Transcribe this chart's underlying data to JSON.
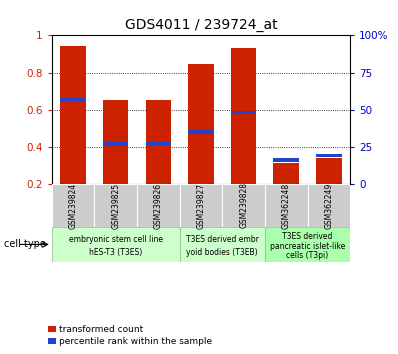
{
  "title": "GDS4011 / 239724_at",
  "samples": [
    "GSM239824",
    "GSM239825",
    "GSM239826",
    "GSM239827",
    "GSM239828",
    "GSM362248",
    "GSM362249"
  ],
  "transformed_count": [
    0.945,
    0.655,
    0.655,
    0.845,
    0.93,
    0.315,
    0.34
  ],
  "percentile_rank": [
    0.655,
    0.415,
    0.42,
    0.48,
    0.585,
    0.33,
    0.355
  ],
  "ylim_min": 0.2,
  "ylim_max": 1.0,
  "yticks": [
    0.2,
    0.4,
    0.6,
    0.8,
    1.0
  ],
  "ytick_labels_left": [
    "0.2",
    "0.4",
    "0.6",
    "0.8",
    "1"
  ],
  "ytick_labels_right": [
    "0",
    "25",
    "50",
    "75",
    "100%"
  ],
  "bar_color": "#cc2200",
  "percentile_color": "#2244cc",
  "bar_width": 0.6,
  "group1_indices": [
    0,
    1,
    2
  ],
  "group2_indices": [
    3,
    4
  ],
  "group3_indices": [
    5,
    6
  ],
  "group1_label_line1": "embryonic stem cell line",
  "group1_label_line2": "hES-T3 (T3ES)",
  "group2_label_line1": "T3ES derived embr",
  "group2_label_line2": "yoid bodies (T3EB)",
  "group3_label_line1": "T3ES derived",
  "group3_label_line2": "pancreatic islet-like",
  "group3_label_line3": "cells (T3pi)",
  "group_color_light": "#ccffcc",
  "group_color_dark": "#aaffaa",
  "tick_box_color": "#cccccc",
  "cell_type_label": "cell type",
  "legend_label1": "transformed count",
  "legend_label2": "percentile rank within the sample",
  "tick_color_left": "#cc2200",
  "tick_color_right": "#0000cc",
  "background_color": "#ffffff"
}
